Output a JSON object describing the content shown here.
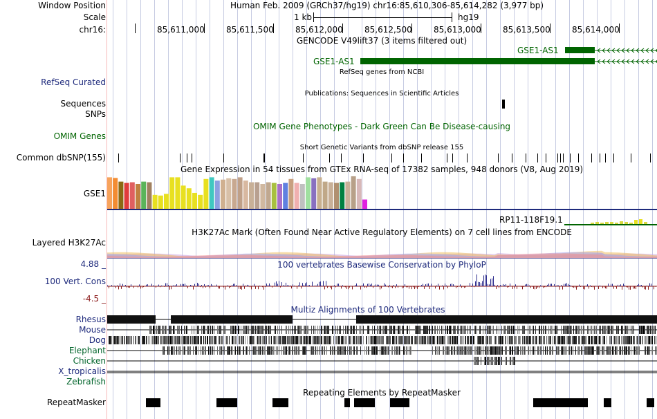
{
  "position": {
    "label": "Window Position",
    "text": "Human Feb. 2009 (GRCh37/hg19)   chr16:85,610,306-85,614,282 (3,977 bp)"
  },
  "scale": {
    "label": "Scale",
    "size_label": "1 kb",
    "assembly": "hg19"
  },
  "ruler": {
    "chrom_label": "chr16:",
    "positions": [
      "85,611,000",
      "85,611,500",
      "85,612,000",
      "85,612,500",
      "85,613,000",
      "85,613,500",
      "85,614,000"
    ]
  },
  "gencode": {
    "title": "GENCODE V49lift37 (3 items filtered out)",
    "gene1": "GSE1-AS1",
    "gene2": "GSE1-AS1"
  },
  "refseq": {
    "title": "RefSeq genes from NCBI",
    "label": "RefSeq Curated"
  },
  "publications": {
    "title": "Publications: Sequences in Scientific Articles",
    "label": "Sequences"
  },
  "snps": {
    "label": "SNPs"
  },
  "omim": {
    "title": "OMIM Gene Phenotypes - Dark Green Can Be Disease-causing",
    "label": "OMIM Genes"
  },
  "dbsnp": {
    "title": "Short Genetic Variants from dbSNP release 155",
    "label": "Common dbSNP(155)"
  },
  "gtex": {
    "title": "Gene Expression in 54 tissues from GTEx RNA-seq of 17382 samples, 948 donors (V8, Aug 2019)",
    "gene1": "GSE1",
    "gene2": "RP11-118F19.1",
    "bar_heights": [
      0.95,
      0.93,
      0.82,
      0.78,
      0.8,
      0.75,
      0.82,
      0.8,
      0.42,
      0.4,
      0.45,
      0.95,
      0.95,
      0.7,
      0.62,
      0.48,
      0.42,
      0.9,
      0.95,
      0.85,
      0.88,
      0.92,
      0.9,
      0.95,
      0.85,
      0.8,
      0.8,
      0.75,
      0.8,
      0.78,
      0.75,
      0.78,
      0.9,
      0.78,
      0.75,
      0.95,
      0.92,
      0.95,
      0.82,
      0.8,
      0.78,
      0.8,
      0.82,
      0.98,
      0.9,
      0.28
    ],
    "bar_colors": [
      "#f7a35c",
      "#f48c32",
      "#8b6914",
      "#e03c3c",
      "#e06060",
      "#c08040",
      "#5ab45a",
      "#a08060",
      "#e8e020",
      "#e8e020",
      "#e8e020",
      "#e8e020",
      "#e8e020",
      "#e8e020",
      "#e8e020",
      "#e8e020",
      "#e8e020",
      "#e8e020",
      "#40c8c0",
      "#8ca0e0",
      "#d0b090",
      "#d8c0a8",
      "#c8a890",
      "#c0a088",
      "#d8b8a0",
      "#c8b098",
      "#b8a090",
      "#d0b8a0",
      "#c0a890",
      "#a8c040",
      "#a870c8",
      "#6080e0",
      "#c8a080",
      "#f0b0b0",
      "#c0c0c0",
      "#a0e0a0",
      "#8870c0",
      "#c8b090",
      "#c0a888",
      "#c8b098",
      "#b09070",
      "#008040",
      "#c8b098",
      "#b8a088",
      "#d8b8b8",
      "#e020e0"
    ]
  },
  "h3k27ac": {
    "title": "H3K27Ac Mark (Often Found Near Active Regulatory Elements) on 7 cell lines from ENCODE",
    "label": "Layered H3K27Ac"
  },
  "phylop": {
    "title": "100 vertebrates Basewise Conservation by PhyloP",
    "label": "100 Vert. Cons",
    "max_label": "4.88 _",
    "min_label": "-4.5 _",
    "ymax": 4.88,
    "ymin": -4.5
  },
  "multiz": {
    "title": "Multiz Alignments of 100 Vertebrates",
    "species": [
      "Rhesus",
      "Mouse",
      "Dog",
      "Elephant",
      "Chicken",
      "X_tropicalis",
      "Zebrafish"
    ]
  },
  "repeatmasker": {
    "title": "Repeating Elements by RepeatMasker",
    "label": "RepeatMasker"
  },
  "colors": {
    "navy": "#1e2a7c",
    "gene_green": "#006400",
    "phylop_pos": "#2a2a8c",
    "phylop_neg": "#8b1a1a",
    "grid": "#c6cbe2"
  }
}
